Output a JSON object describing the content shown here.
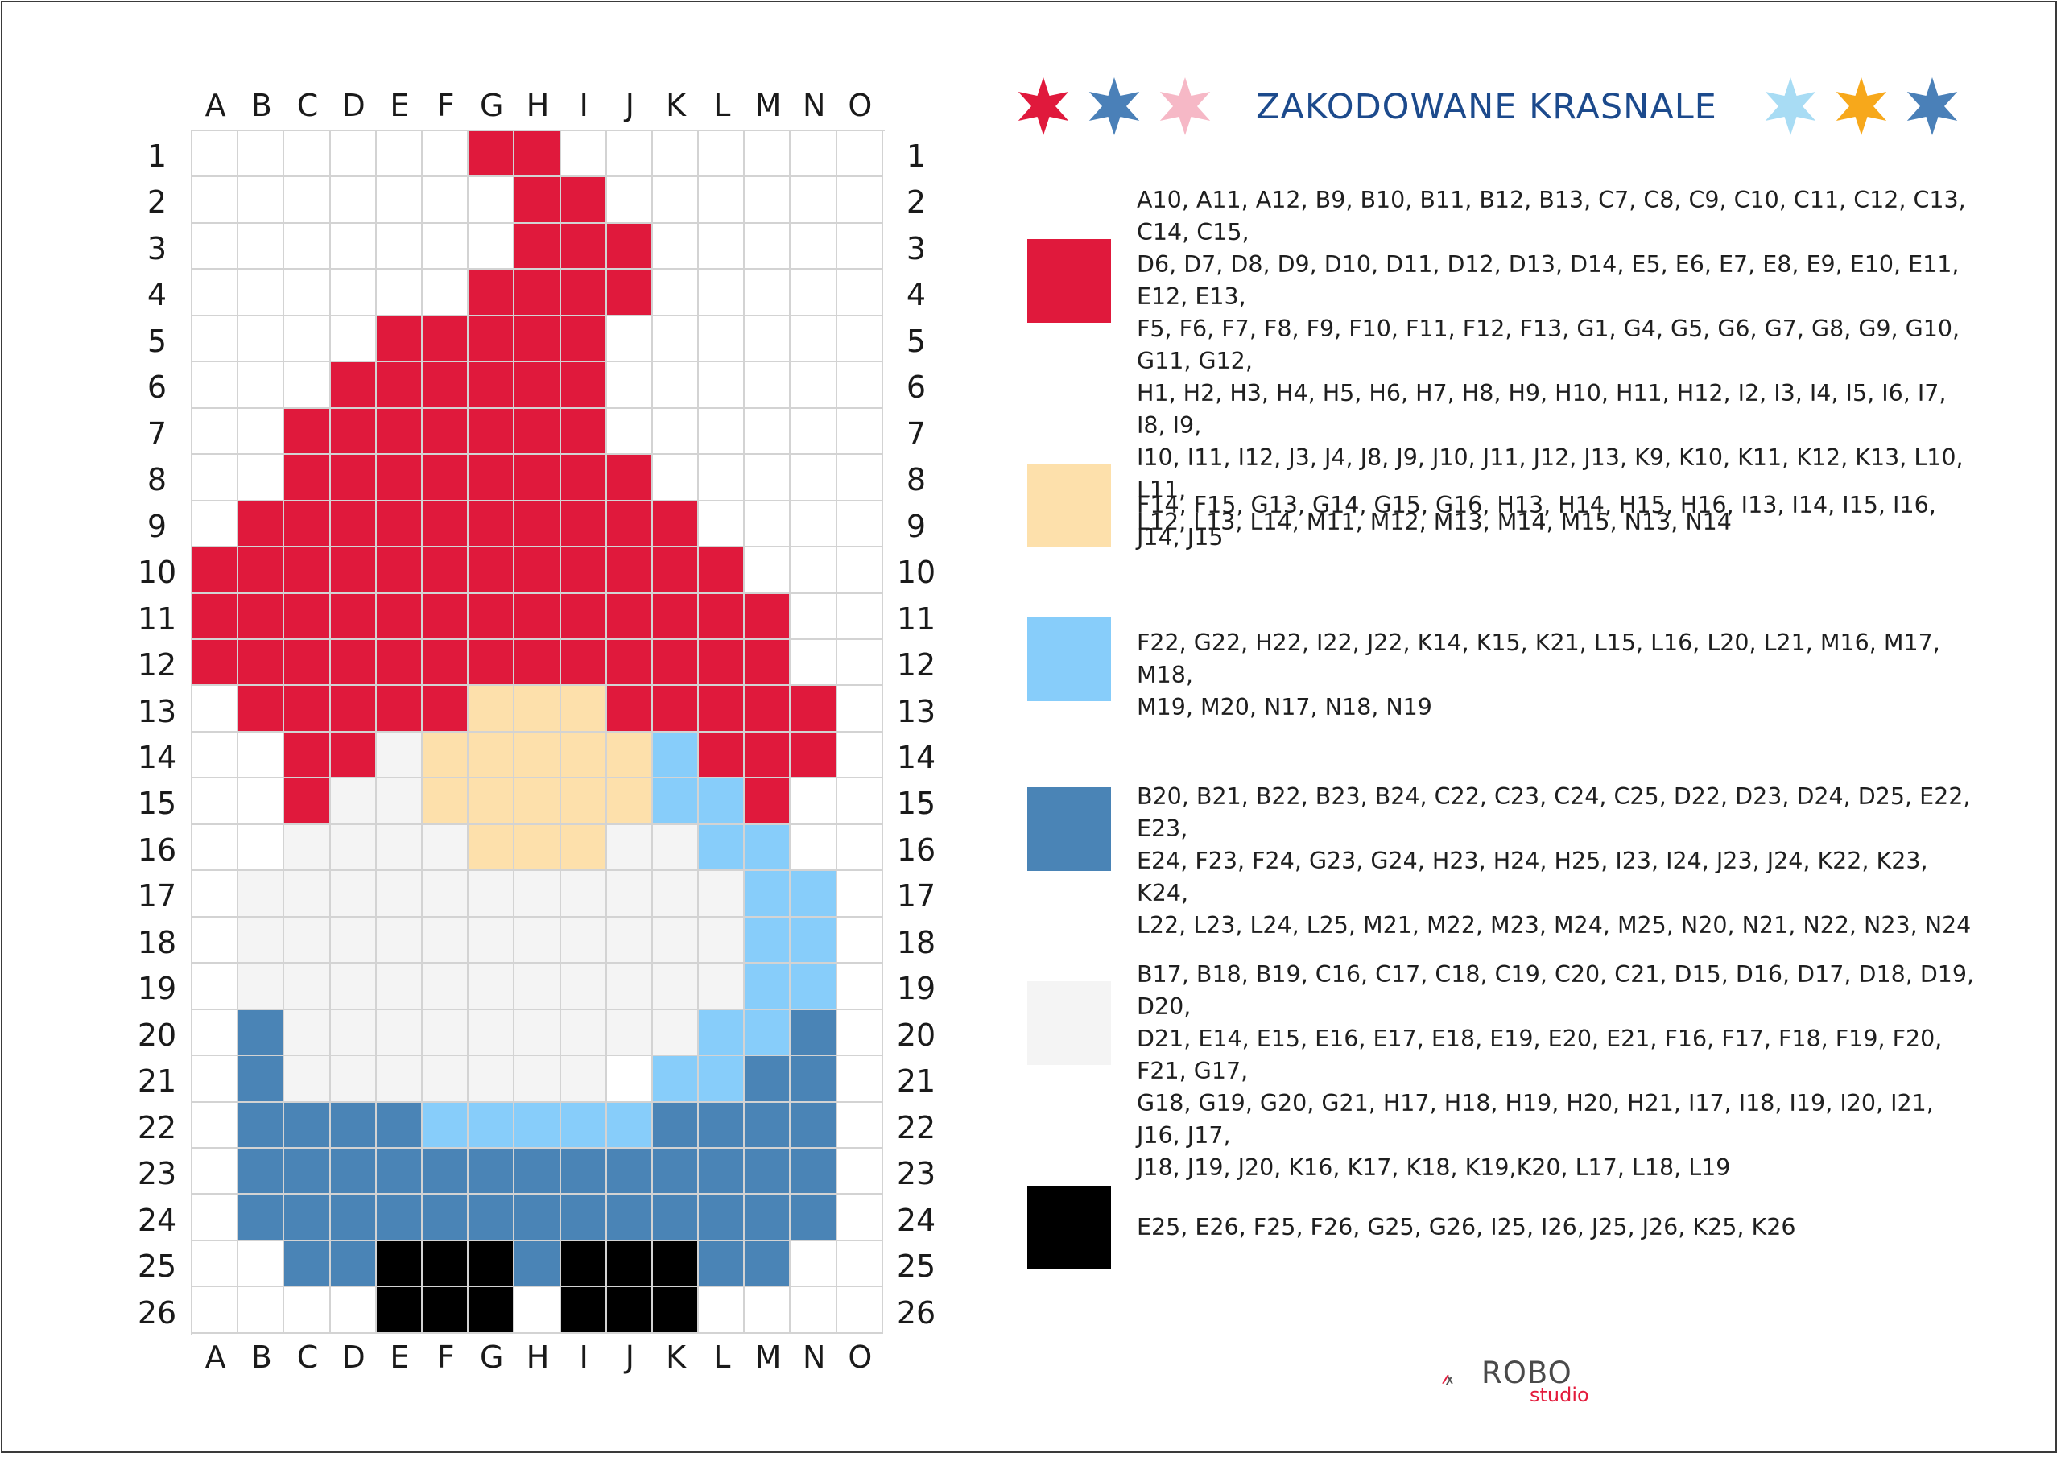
{
  "title": "ZAKODOWANE KRASNALE",
  "columns": [
    "A",
    "B",
    "C",
    "D",
    "E",
    "F",
    "G",
    "H",
    "I",
    "J",
    "K",
    "L",
    "M",
    "N",
    "O"
  ],
  "rows": [
    "1",
    "2",
    "3",
    "4",
    "5",
    "6",
    "7",
    "8",
    "9",
    "10",
    "11",
    "12",
    "13",
    "14",
    "15",
    "16",
    "17",
    "18",
    "19",
    "20",
    "21",
    "22",
    "23",
    "24",
    "25",
    "26"
  ],
  "title_stars_left": [
    "#e0193c",
    "#4a80b8",
    "#f6b8c6"
  ],
  "title_stars_right": [
    "#a8dcf4",
    "#f7a81b",
    "#4a80b8"
  ],
  "legend": [
    {
      "color": "#e0193c",
      "lines": [
        "A10, A11, A12, B9, B10, B11, B12, B13, C7, C8, C9, C10, C11, C12, C13, C14, C15,",
        "D6, D7, D8, D9, D10, D11, D12, D13, D14, E5, E6, E7, E8, E9, E10, E11, E12, E13,",
        "F5, F6, F7, F8, F9, F10, F11, F12, F13, G1, G4, G5, G6, G7, G8, G9, G10, G11, G12,",
        "H1, H2, H3, H4, H5, H6, H7, H8, H9, H10, H11, H12, I2, I3, I4, I5, I6, I7, I8, I9,",
        "I10, I11, I12, J3, J4, J8, J9, J10, J11, J12, J13, K9, K10, K11, K12, K13, L10, L11,",
        "L12, L13, L14, M11, M12, M13, M14, M15, N13, N14"
      ]
    },
    {
      "color": "#fde0ab",
      "lines": [
        "F14, F15, G13, G14, G15, G16, H13, H14, H15, H16, I13, I14, I15, I16, J14, J15"
      ]
    },
    {
      "color": "#87cdfa",
      "lines": [
        "F22, G22, H22, I22, J22, K14, K15, K21, L15, L16, L20, L21, M16, M17, M18,",
        "M19, M20, N17, N18, N19"
      ]
    },
    {
      "color": "#4a84b6",
      "lines": [
        "B20, B21, B22, B23, B24, C22, C23, C24, C25, D22, D23, D24, D25, E22, E23,",
        "E24, F23, F24, G23, G24, H23, H24, H25, I23, I24, J23, J24, K22, K23, K24,",
        "L22, L23, L24, L25, M21, M22, M23, M24, M25, N20, N21, N22, N23, N24"
      ]
    },
    {
      "color": "#f4f4f4",
      "lines": [
        "B17, B18, B19, C16, C17, C18, C19, C20, C21, D15, D16, D17, D18, D19, D20,",
        "D21, E14, E15, E16, E17, E18, E19, E20, E21, F16, F17, F18, F19, F20, F21, G17,",
        "G18, G19, G20, G21, H17, H18, H19, H20, H21, I17, I18, I19, I20, I21, J16, J17,",
        "J18, J19, J20, K16, K17, K18, K19,K20, L17, L18, L19"
      ]
    },
    {
      "color": "#000000",
      "lines": [
        "E25, E26, F25, F26, G25, G26, I25, I26, J25, J26, K25, K26"
      ]
    }
  ],
  "logo": {
    "main": "ROBO",
    "sub": "studio",
    "icon": "robo-studio-logo-icon"
  }
}
